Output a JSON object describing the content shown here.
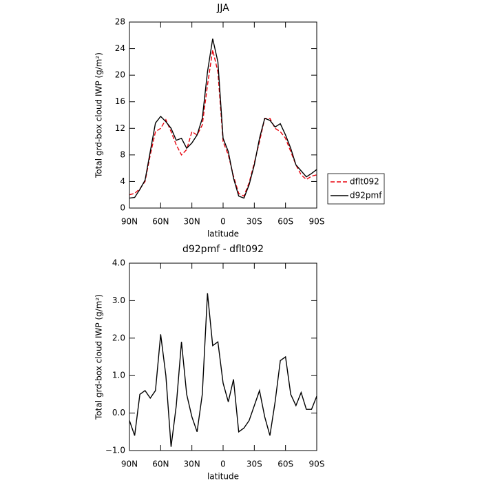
{
  "chart_data": [
    {
      "type": "line",
      "title": "JJA",
      "xlabel": "latitude",
      "ylabel": "Total grd-box cloud IWP (g/m²)",
      "x": [
        90,
        85,
        80,
        75,
        70,
        65,
        60,
        55,
        50,
        45,
        40,
        35,
        30,
        25,
        20,
        15,
        10,
        5,
        0,
        -5,
        -10,
        -15,
        -20,
        -25,
        -30,
        -35,
        -40,
        -45,
        -50,
        -55,
        -60,
        -65,
        -70,
        -75,
        -80,
        -85,
        -90
      ],
      "xlim": [
        90,
        -90
      ],
      "xticks": [
        {
          "value": 90,
          "label": "90N"
        },
        {
          "value": 60,
          "label": "60N"
        },
        {
          "value": 30,
          "label": "30N"
        },
        0,
        {
          "value": -30,
          "label": "30S"
        },
        {
          "value": -60,
          "label": "60S"
        },
        {
          "value": -90,
          "label": "90S"
        }
      ],
      "ylim": [
        0,
        28
      ],
      "yticks": [
        0,
        4,
        8,
        12,
        16,
        20,
        24,
        28
      ],
      "legend": "right",
      "series": [
        {
          "name": "dflt092",
          "color": "#e8000b",
          "linestyle": "dashed",
          "values": [
            2.0,
            2.2,
            2.9,
            4.0,
            8.0,
            11.5,
            12.0,
            13.3,
            11.5,
            9.5,
            8.0,
            8.8,
            11.5,
            11.0,
            12.5,
            18.5,
            23.8,
            20.5,
            10.0,
            8.0,
            4.8,
            2.2,
            1.8,
            3.8,
            6.8,
            10.0,
            13.5,
            13.5,
            12.0,
            11.5,
            10.5,
            8.5,
            6.5,
            5.0,
            4.3,
            4.8,
            5.0
          ]
        },
        {
          "name": "d92pmf",
          "color": "#000000",
          "linestyle": "solid",
          "values": [
            1.5,
            1.6,
            2.8,
            4.2,
            8.5,
            12.8,
            13.8,
            13.0,
            12.0,
            10.2,
            10.5,
            9.0,
            9.8,
            11.0,
            13.5,
            20.5,
            25.5,
            22.0,
            10.5,
            8.5,
            4.5,
            1.8,
            1.5,
            3.5,
            6.5,
            10.5,
            13.5,
            13.2,
            12.2,
            12.7,
            11.0,
            9.0,
            6.5,
            5.6,
            4.7,
            5.2,
            5.8
          ]
        }
      ]
    },
    {
      "type": "line",
      "title": "d92pmf - dflt092",
      "xlabel": "latitude",
      "ylabel": "Total grd-box cloud IWP (g/m²)",
      "x": [
        90,
        85,
        80,
        75,
        70,
        65,
        60,
        55,
        50,
        45,
        40,
        35,
        30,
        25,
        20,
        15,
        10,
        5,
        0,
        -5,
        -10,
        -15,
        -20,
        -25,
        -30,
        -35,
        -40,
        -45,
        -50,
        -55,
        -60,
        -65,
        -70,
        -75,
        -80,
        -85,
        -90
      ],
      "xlim": [
        90,
        -90
      ],
      "xticks": [
        {
          "value": 90,
          "label": "90N"
        },
        {
          "value": 60,
          "label": "60N"
        },
        {
          "value": 30,
          "label": "30N"
        },
        0,
        {
          "value": -30,
          "label": "30S"
        },
        {
          "value": -60,
          "label": "60S"
        },
        {
          "value": -90,
          "label": "90S"
        }
      ],
      "ylim": [
        -1,
        4
      ],
      "yticks": [
        {
          "value": -1,
          "label": "−1.0"
        },
        {
          "value": 0,
          "label": "0.0"
        },
        {
          "value": 1,
          "label": "1.0"
        },
        {
          "value": 2,
          "label": "2.0"
        },
        {
          "value": 3,
          "label": "3.0"
        },
        {
          "value": 4,
          "label": "4.0"
        }
      ],
      "color": "#000000",
      "values": [
        -0.2,
        -0.6,
        0.5,
        0.6,
        0.4,
        0.6,
        2.1,
        1.0,
        -0.9,
        0.2,
        1.9,
        0.5,
        -0.1,
        -0.5,
        0.5,
        3.2,
        1.8,
        1.9,
        0.8,
        0.3,
        0.9,
        -0.5,
        -0.4,
        -0.2,
        0.2,
        0.6,
        -0.1,
        -0.6,
        0.3,
        1.4,
        1.5,
        0.5,
        0.2,
        0.55,
        0.1,
        0.1,
        0.45
      ]
    }
  ]
}
